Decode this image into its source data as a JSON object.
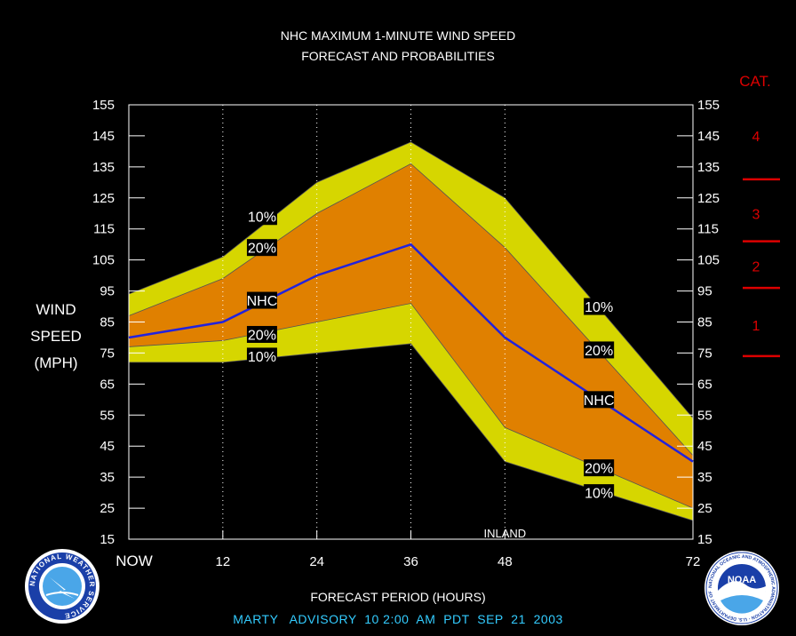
{
  "title_line1": "NHC MAXIMUM 1-MINUTE WIND SPEED",
  "title_line2": "FORECAST AND PROBABILITIES",
  "ylabel_lines": [
    "WIND",
    "SPEED",
    "(MPH)"
  ],
  "xlabel": "FORECAST PERIOD (HOURS)",
  "advisory_text": "MARTY   ADVISORY  10 2:00  AM  PDT  SEP  21  2003",
  "category_header": "CAT.",
  "category_labels": [
    {
      "label": "4",
      "y": 145
    },
    {
      "label": "3",
      "y": 120
    },
    {
      "label": "2",
      "y": 103
    },
    {
      "label": "1",
      "y": 84
    }
  ],
  "category_thresholds": [
    74,
    96,
    111,
    131
  ],
  "inland_label": "INLAND",
  "inland_hour": 48,
  "logo_left": "NATIONAL WEATHER SERVICE",
  "logo_right": "NOAA",
  "logo_right_ring": "NATIONAL OCEANIC AND ATMOSPHERIC ADMINISTRATION · U.S. DEPARTMENT OF COMMERCE",
  "colors": {
    "band_10": "#d6d600",
    "band_20": "#e08000",
    "nhc_line": "#2222dd",
    "category": "#dd0000",
    "advisory": "#33ccff"
  },
  "chart_data": {
    "type": "area",
    "x_ticks": [
      {
        "value": 0,
        "label": "NOW"
      },
      {
        "value": 12,
        "label": "12"
      },
      {
        "value": 24,
        "label": "24"
      },
      {
        "value": 36,
        "label": "36"
      },
      {
        "value": 48,
        "label": "48"
      },
      {
        "value": 72,
        "label": "72"
      }
    ],
    "y_ticks": [
      15,
      25,
      35,
      45,
      55,
      65,
      75,
      85,
      95,
      105,
      115,
      125,
      135,
      145,
      155
    ],
    "xlim": [
      0,
      72
    ],
    "ylim": [
      15,
      155
    ],
    "grid_x": [
      12,
      24,
      36,
      48
    ],
    "series": [
      {
        "name": "10%",
        "x": [
          0,
          12,
          24,
          36,
          48,
          72
        ],
        "upper": [
          94,
          106,
          130,
          143,
          125,
          54
        ],
        "lower": [
          72,
          72,
          75,
          78,
          40,
          21
        ]
      },
      {
        "name": "20%",
        "x": [
          0,
          12,
          24,
          36,
          48,
          72
        ],
        "upper": [
          87,
          99,
          120,
          136,
          109,
          42
        ],
        "lower": [
          77,
          79,
          85,
          91,
          51,
          25
        ]
      },
      {
        "name": "NHC",
        "x": [
          0,
          12,
          24,
          36,
          48,
          72
        ],
        "values": [
          80,
          85,
          100,
          110,
          80,
          40
        ]
      }
    ],
    "annotations": [
      {
        "text": "10%",
        "x": 17,
        "y": 119
      },
      {
        "text": "20%",
        "x": 17,
        "y": 109
      },
      {
        "text": "NHC",
        "x": 17,
        "y": 92
      },
      {
        "text": "20%",
        "x": 17,
        "y": 81
      },
      {
        "text": "10%",
        "x": 17,
        "y": 74
      },
      {
        "text": "10%",
        "x": 60,
        "y": 90
      },
      {
        "text": "20%",
        "x": 60,
        "y": 76
      },
      {
        "text": "NHC",
        "x": 60,
        "y": 60
      },
      {
        "text": "20%",
        "x": 60,
        "y": 38
      },
      {
        "text": "10%",
        "x": 60,
        "y": 30
      }
    ]
  }
}
